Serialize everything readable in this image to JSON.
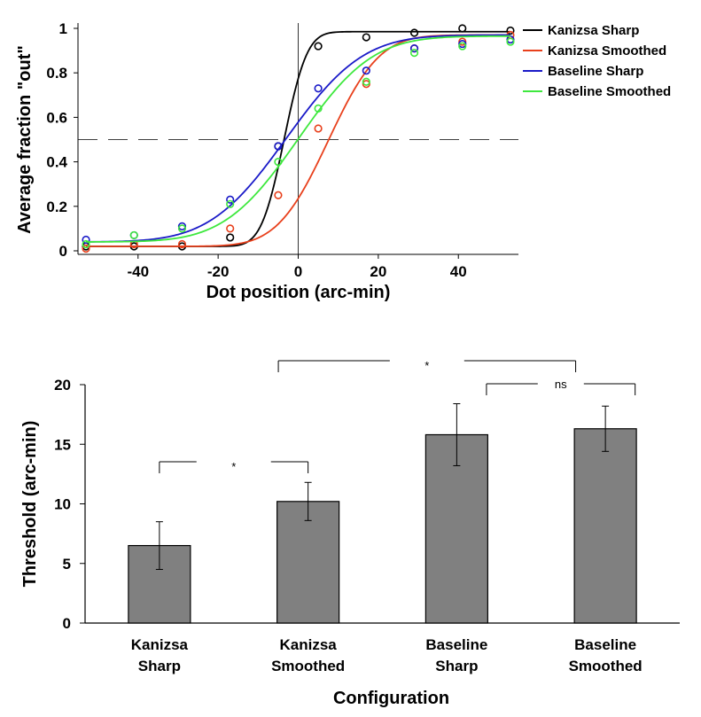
{
  "chart_data": [
    {
      "type": "line",
      "xlabel": "Dot position (arc-min)",
      "ylabel": "Average fraction \"out\"",
      "xlim": [
        -55,
        55
      ],
      "ylim": [
        0,
        1
      ],
      "x_ticks": [
        -40,
        -20,
        0,
        20,
        40
      ],
      "y_ticks": [
        0,
        0.2,
        0.4,
        0.6,
        0.8,
        1
      ],
      "reference_lines": {
        "y": 0.5,
        "x": 0
      },
      "x": [
        -53,
        -41,
        -29,
        -17,
        -5,
        5,
        17,
        29,
        41,
        53
      ],
      "series": [
        {
          "name": "Kanizsa Sharp",
          "color": "#000000",
          "values": [
            0.02,
            0.02,
            0.02,
            0.06,
            0.47,
            0.92,
            0.96,
            0.98,
            1.0,
            0.99
          ],
          "fit": {
            "mu": -3.5,
            "sigma": 4.5,
            "lo": 0.02,
            "hi": 0.985
          }
        },
        {
          "name": "Kanizsa Smoothed",
          "color": "#e8401c",
          "values": [
            0.01,
            0.03,
            0.03,
            0.1,
            0.25,
            0.55,
            0.75,
            0.91,
            0.94,
            0.97
          ],
          "fit": {
            "mu": 7.5,
            "sigma": 10.0,
            "lo": 0.02,
            "hi": 0.97
          }
        },
        {
          "name": "Baseline Sharp",
          "color": "#1a1ac8",
          "values": [
            0.05,
            0.07,
            0.11,
            0.23,
            0.47,
            0.73,
            0.81,
            0.91,
            0.93,
            0.95
          ],
          "fit": {
            "mu": -3.0,
            "sigma": 15.0,
            "lo": 0.04,
            "hi": 0.97
          }
        },
        {
          "name": "Baseline Smoothed",
          "color": "#3ee83e",
          "values": [
            0.03,
            0.07,
            0.1,
            0.21,
            0.4,
            0.64,
            0.76,
            0.89,
            0.92,
            0.94
          ],
          "fit": {
            "mu": 0.0,
            "sigma": 14.5,
            "lo": 0.04,
            "hi": 0.965
          }
        }
      ],
      "legend_position": "top-right"
    },
    {
      "type": "bar",
      "xlabel": "Configuration",
      "ylabel": "Threshold (arc-min)",
      "ylim": [
        0,
        20
      ],
      "y_ticks": [
        0,
        5,
        10,
        15,
        20
      ],
      "categories": [
        [
          "Kanizsa",
          "Sharp"
        ],
        [
          "Kanizsa",
          "Smoothed"
        ],
        [
          "Baseline",
          "Sharp"
        ],
        [
          "Baseline",
          "Smoothed"
        ]
      ],
      "values": [
        6.5,
        10.2,
        15.8,
        16.3
      ],
      "errors": [
        2.0,
        1.6,
        2.6,
        1.9
      ],
      "bar_color": "#808080",
      "significance": [
        {
          "from": 0,
          "to": 1,
          "label": "*"
        },
        {
          "from": 0.8,
          "to": 2.8,
          "label": "*"
        },
        {
          "from": 2.2,
          "to": 3.2,
          "label": "ns"
        }
      ]
    }
  ]
}
